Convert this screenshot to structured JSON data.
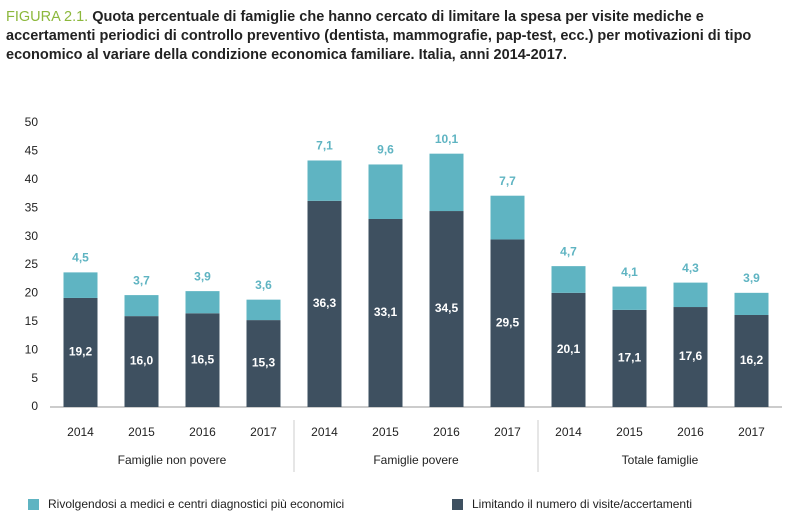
{
  "chart_data": {
    "type": "bar",
    "stacked": true,
    "figure_label": "FIGURA 2.1.",
    "title": "Quota percentuale di famiglie che hanno cercato di limitare la spesa per visite mediche e accertamenti periodici di controllo preventivo (dentista, mammografie, pap-test, ecc.) per motivazioni di tipo economico al variare della condizione economica familiare. Italia, anni 2014-2017.",
    "categories": [
      "2014",
      "2015",
      "2016",
      "2017",
      "2014",
      "2015",
      "2016",
      "2017",
      "2014",
      "2015",
      "2016",
      "2017"
    ],
    "groups": [
      "Famiglie non povere",
      "Famiglie povere",
      "Totale famiglie"
    ],
    "series": [
      {
        "name": "Rivolgendosi a medici e centri diagnostici più economici",
        "color": "#5fb4c2",
        "values": [
          4.5,
          3.7,
          3.9,
          3.6,
          7.1,
          9.6,
          10.1,
          7.7,
          4.7,
          4.1,
          4.3,
          3.9
        ],
        "value_labels": [
          "4,5",
          "3,7",
          "3,9",
          "3,6",
          "7,1",
          "9,6",
          "10,1",
          "7,7",
          "4,7",
          "4,1",
          "4,3",
          "3,9"
        ]
      },
      {
        "name": "Limitando il numero di visite/accertamenti",
        "color": "#3e5060",
        "values": [
          19.2,
          16.0,
          16.5,
          15.3,
          36.3,
          33.1,
          34.5,
          29.5,
          20.1,
          17.1,
          17.6,
          16.2
        ],
        "value_labels": [
          "19,2",
          "16,0",
          "16,5",
          "15,3",
          "36,3",
          "33,1",
          "34,5",
          "29,5",
          "20,1",
          "17,1",
          "17,6",
          "16,2"
        ]
      }
    ],
    "ylim": [
      0,
      50
    ],
    "yticks": [
      0,
      5,
      10,
      15,
      20,
      25,
      30,
      35,
      40,
      45,
      50
    ],
    "grid": false
  }
}
